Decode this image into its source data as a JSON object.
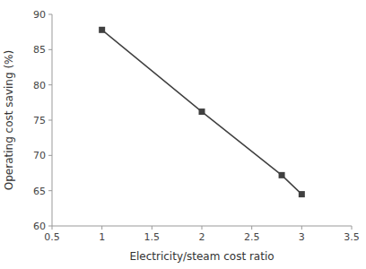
{
  "chart_data": {
    "type": "line",
    "xlabel": "Electricity/steam cost ratio",
    "ylabel": "Operating cost saving (%)",
    "x": [
      1.0,
      2.0,
      2.8,
      3.0
    ],
    "values": [
      87.8,
      76.2,
      67.2,
      64.5
    ],
    "xlim": [
      0.5,
      3.5
    ],
    "ylim": [
      60,
      90
    ],
    "xticks": [
      0.5,
      1,
      1.5,
      2,
      2.5,
      3,
      3.5
    ],
    "yticks": [
      60,
      65,
      70,
      75,
      80,
      85,
      90
    ],
    "color": "#404040",
    "marker": "square",
    "grid": false
  }
}
